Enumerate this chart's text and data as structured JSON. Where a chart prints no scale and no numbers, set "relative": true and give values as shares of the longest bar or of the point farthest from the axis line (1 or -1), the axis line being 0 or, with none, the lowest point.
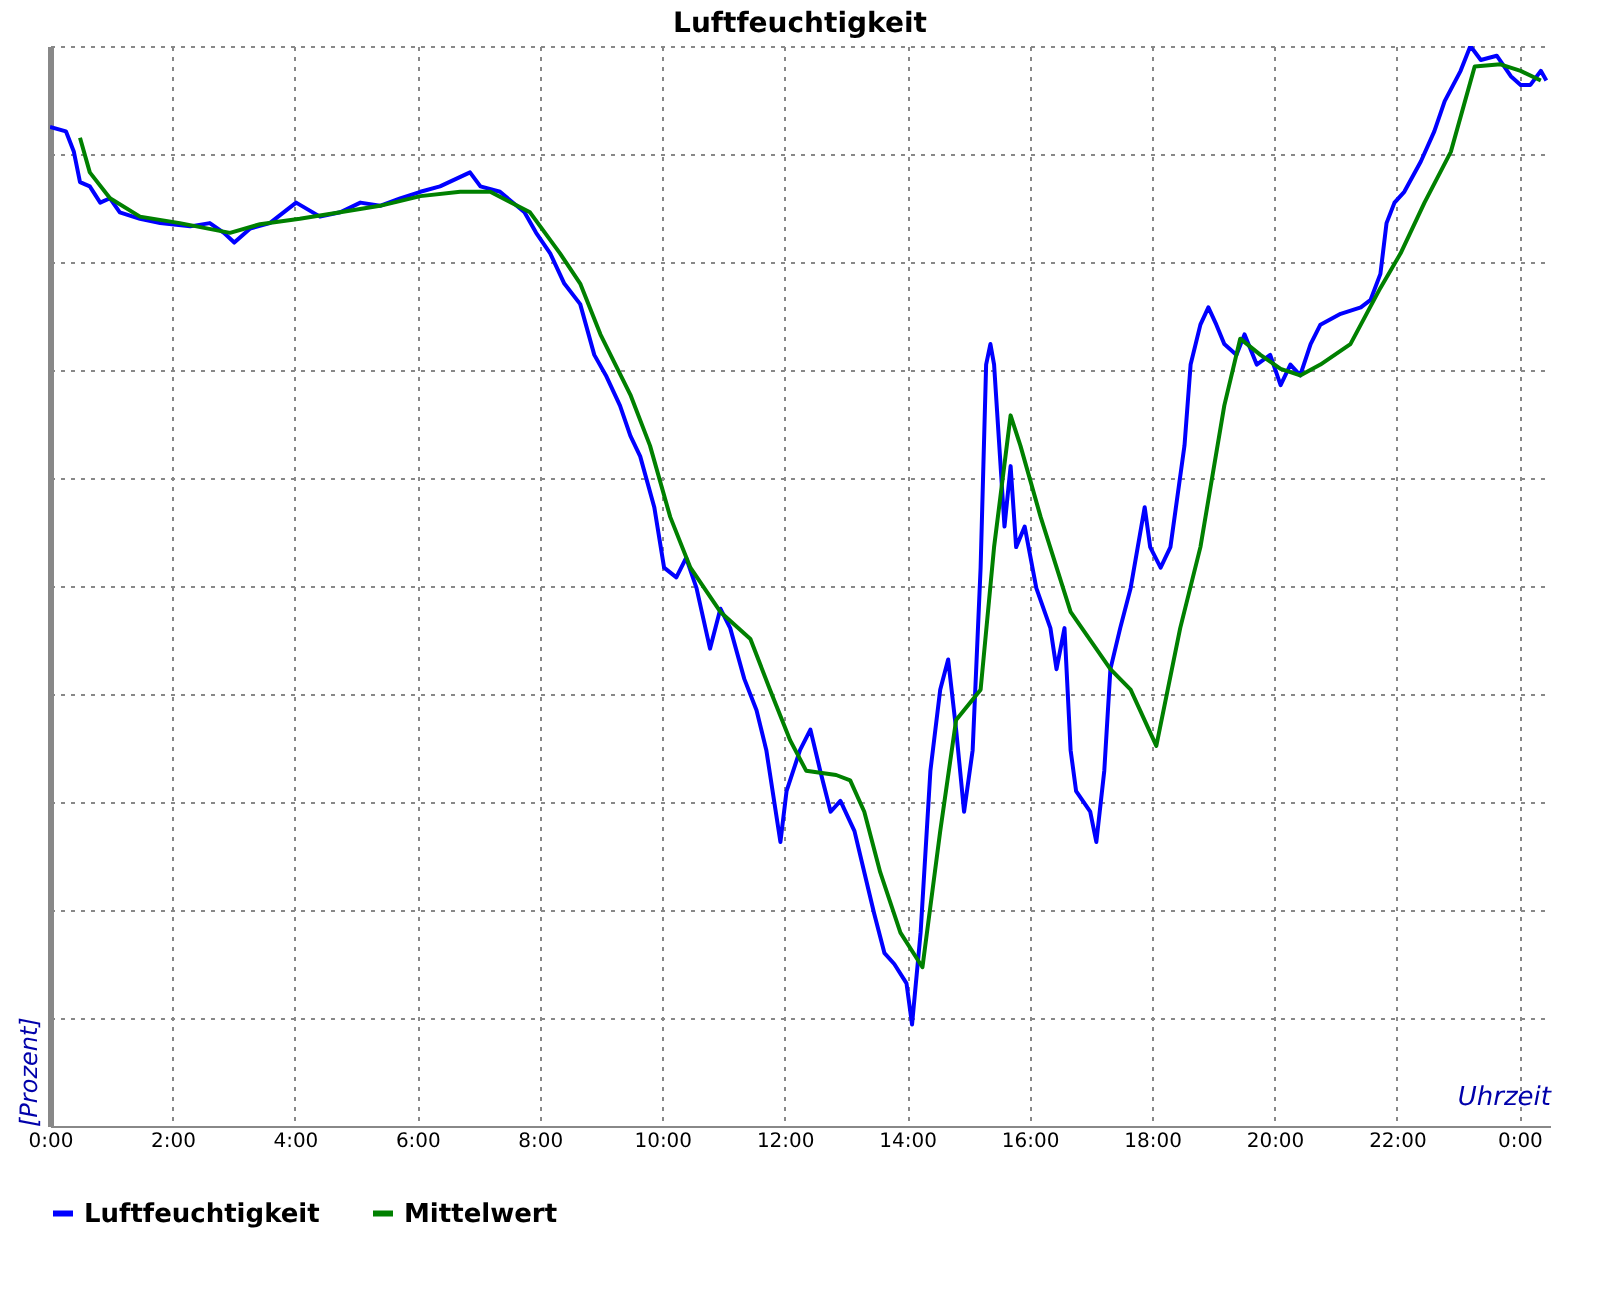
{
  "chart_data": {
    "type": "line",
    "title": "Luftfeuchtigkeit",
    "xlabel": "Uhrzeit",
    "ylabel": "[Prozent]",
    "relative": true,
    "grid": true,
    "legend": "bottom left",
    "marker": "none",
    "line_style": "solid",
    "xlim": [
      0,
      24.5
    ],
    "xticks": [
      {
        "value": 0,
        "label": "0:00"
      },
      {
        "value": 2,
        "label": "2:00"
      },
      {
        "value": 4,
        "label": "4:00"
      },
      {
        "value": 6,
        "label": "6:00"
      },
      {
        "value": 8,
        "label": "8:00"
      },
      {
        "value": 10,
        "label": "10:00"
      },
      {
        "value": 12,
        "label": "12:00"
      },
      {
        "value": 14,
        "label": "14:00"
      },
      {
        "value": 16,
        "label": "16:00"
      },
      {
        "value": 18,
        "label": "18:00"
      },
      {
        "value": 20,
        "label": "20:00"
      },
      {
        "value": 22,
        "label": "22:00"
      },
      {
        "value": 24,
        "label": "0:00"
      }
    ],
    "series": [
      {
        "name": "Luftfeuchtigkeit",
        "color": "#0000ff",
        "x": [
          0,
          0.26,
          0.39,
          0.49,
          0.65,
          0.82,
          0.98,
          1.14,
          1.47,
          1.8,
          2.29,
          2.61,
          2.84,
          3.01,
          3.27,
          3.59,
          4.02,
          4.41,
          4.74,
          5.07,
          5.39,
          5.72,
          6.05,
          6.37,
          6.86,
          7.03,
          7.35,
          7.75,
          7.94,
          8.17,
          8.4,
          8.66,
          8.89,
          9.08,
          9.31,
          9.48,
          9.64,
          9.87,
          10.03,
          10.23,
          10.39,
          10.56,
          10.78,
          10.95,
          11.11,
          11.34,
          11.54,
          11.7,
          11.93,
          12.03,
          12.25,
          12.42,
          12.58,
          12.75,
          12.91,
          13.14,
          13.3,
          13.46,
          13.63,
          13.79,
          13.99,
          14.08,
          14.22,
          14.38,
          14.54,
          14.67,
          14.8,
          14.93,
          15.07,
          15.2,
          15.29,
          15.36,
          15.42,
          15.59,
          15.69,
          15.78,
          15.92,
          16.11,
          16.34,
          16.44,
          16.57,
          16.67,
          16.76,
          16.99,
          17.09,
          17.22,
          17.32,
          17.48,
          17.65,
          17.88,
          17.97,
          18.14,
          18.3,
          18.53,
          18.63,
          18.79,
          18.92,
          19.05,
          19.18,
          19.38,
          19.51,
          19.71,
          19.93,
          20.1,
          20.26,
          20.42,
          20.59,
          20.75,
          21.08,
          21.41,
          21.57,
          21.73,
          21.83,
          21.96,
          22.12,
          22.39,
          22.61,
          22.78,
          23.04,
          23.2,
          23.37,
          23.63,
          23.86,
          24.02,
          24.18,
          24.35,
          24.44
        ],
        "values": [
          0.925,
          0.921,
          0.902,
          0.874,
          0.87,
          0.855,
          0.859,
          0.846,
          0.84,
          0.836,
          0.833,
          0.836,
          0.827,
          0.818,
          0.831,
          0.836,
          0.855,
          0.842,
          0.846,
          0.855,
          0.852,
          0.859,
          0.865,
          0.87,
          0.883,
          0.87,
          0.865,
          0.846,
          0.827,
          0.808,
          0.78,
          0.761,
          0.714,
          0.695,
          0.667,
          0.639,
          0.62,
          0.573,
          0.517,
          0.508,
          0.526,
          0.498,
          0.442,
          0.479,
          0.461,
          0.414,
          0.385,
          0.348,
          0.263,
          0.31,
          0.348,
          0.367,
          0.329,
          0.291,
          0.301,
          0.273,
          0.235,
          0.197,
          0.16,
          0.15,
          0.132,
          0.094,
          0.179,
          0.329,
          0.404,
          0.432,
          0.367,
          0.291,
          0.348,
          0.517,
          0.705,
          0.724,
          0.705,
          0.555,
          0.611,
          0.536,
          0.555,
          0.498,
          0.461,
          0.423,
          0.461,
          0.348,
          0.31,
          0.291,
          0.263,
          0.329,
          0.423,
          0.461,
          0.498,
          0.573,
          0.536,
          0.517,
          0.536,
          0.63,
          0.705,
          0.742,
          0.758,
          0.742,
          0.724,
          0.714,
          0.733,
          0.705,
          0.714,
          0.686,
          0.705,
          0.695,
          0.724,
          0.742,
          0.752,
          0.758,
          0.765,
          0.789,
          0.836,
          0.855,
          0.865,
          0.893,
          0.921,
          0.949,
          0.977,
          1,
          0.987,
          0.991,
          0.972,
          0.964,
          0.964,
          0.977,
          0.968
        ]
      },
      {
        "name": "Mittelwert",
        "color": "#008000",
        "x": [
          0.49,
          0.65,
          0.98,
          1.47,
          2.12,
          2.94,
          3.43,
          4.08,
          4.74,
          5.39,
          6.05,
          6.7,
          7.19,
          7.84,
          8.33,
          8.66,
          8.99,
          9.48,
          9.8,
          10.13,
          10.46,
          10.95,
          11.44,
          11.76,
          12.09,
          12.35,
          12.84,
          13.07,
          13.3,
          13.56,
          13.89,
          14.25,
          14.54,
          14.8,
          15.2,
          15.42,
          15.69,
          15.85,
          16.18,
          16.67,
          17.32,
          17.65,
          18.07,
          18.46,
          18.79,
          19.18,
          19.44,
          19.77,
          20.1,
          20.42,
          20.75,
          21.24,
          21.73,
          22.06,
          22.45,
          22.88,
          23.27,
          23.69,
          24.02,
          24.35
        ],
        "values": [
          0.915,
          0.883,
          0.859,
          0.842,
          0.836,
          0.827,
          0.835,
          0.84,
          0.846,
          0.852,
          0.861,
          0.865,
          0.865,
          0.846,
          0.808,
          0.78,
          0.733,
          0.677,
          0.63,
          0.564,
          0.517,
          0.476,
          0.451,
          0.404,
          0.357,
          0.329,
          0.325,
          0.32,
          0.291,
          0.235,
          0.179,
          0.147,
          0.273,
          0.376,
          0.404,
          0.536,
          0.658,
          0.63,
          0.564,
          0.476,
          0.423,
          0.404,
          0.352,
          0.461,
          0.536,
          0.667,
          0.729,
          0.714,
          0.701,
          0.695,
          0.705,
          0.724,
          0.776,
          0.808,
          0.855,
          0.902,
          0.981,
          0.983,
          0.977,
          0.968
        ]
      }
    ]
  }
}
